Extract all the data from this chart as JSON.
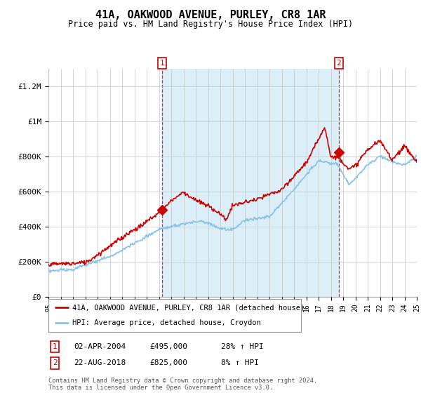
{
  "title": "41A, OAKWOOD AVENUE, PURLEY, CR8 1AR",
  "subtitle": "Price paid vs. HM Land Registry's House Price Index (HPI)",
  "x_start_year": 1995,
  "x_end_year": 2025,
  "ylim": [
    0,
    1300000
  ],
  "yticks": [
    0,
    200000,
    400000,
    600000,
    800000,
    1000000,
    1200000
  ],
  "ytick_labels": [
    "£0",
    "£200K",
    "£400K",
    "£600K",
    "£800K",
    "£1M",
    "£1.2M"
  ],
  "hpi_color": "#89c4e8",
  "price_color": "#cc0000",
  "shade_color": "#dceef8",
  "sale1_year": 2004.25,
  "sale1_price": 495000,
  "sale2_year": 2018.65,
  "sale2_price": 825000,
  "legend_label1": "41A, OAKWOOD AVENUE, PURLEY, CR8 1AR (detached house)",
  "legend_label2": "HPI: Average price, detached house, Croydon",
  "note1_label": "1",
  "note1_date": "02-APR-2004",
  "note1_price": "£495,000",
  "note1_hpi": "28% ↑ HPI",
  "note2_label": "2",
  "note2_date": "22-AUG-2018",
  "note2_price": "£825,000",
  "note2_hpi": "8% ↑ HPI",
  "footer": "Contains HM Land Registry data © Crown copyright and database right 2024.\nThis data is licensed under the Open Government Licence v3.0.",
  "background_color": "#ffffff",
  "grid_color": "#cccccc"
}
